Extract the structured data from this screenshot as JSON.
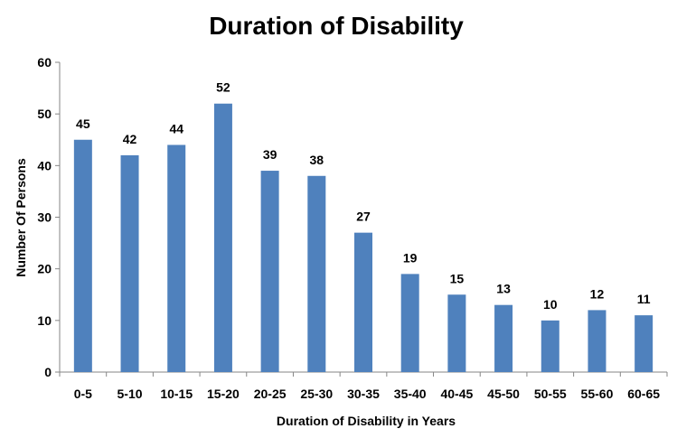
{
  "chart_data": {
    "type": "bar",
    "title": "Duration of Disability",
    "xlabel": "Duration of Disability in Years",
    "ylabel": "Number Of Persons",
    "categories": [
      "0-5",
      "5-10",
      "10-15",
      "15-20",
      "20-25",
      "25-30",
      "30-35",
      "35-40",
      "40-45",
      "45-50",
      "50-55",
      "55-60",
      "60-65"
    ],
    "values": [
      45,
      42,
      44,
      52,
      39,
      38,
      27,
      19,
      15,
      13,
      10,
      12,
      11
    ],
    "ylim": [
      0,
      60
    ],
    "yticks": [
      0,
      10,
      20,
      30,
      40,
      50,
      60
    ],
    "grid": false,
    "legend": "none",
    "bar_color": "#4F81BD",
    "axis_color": "#868686"
  }
}
